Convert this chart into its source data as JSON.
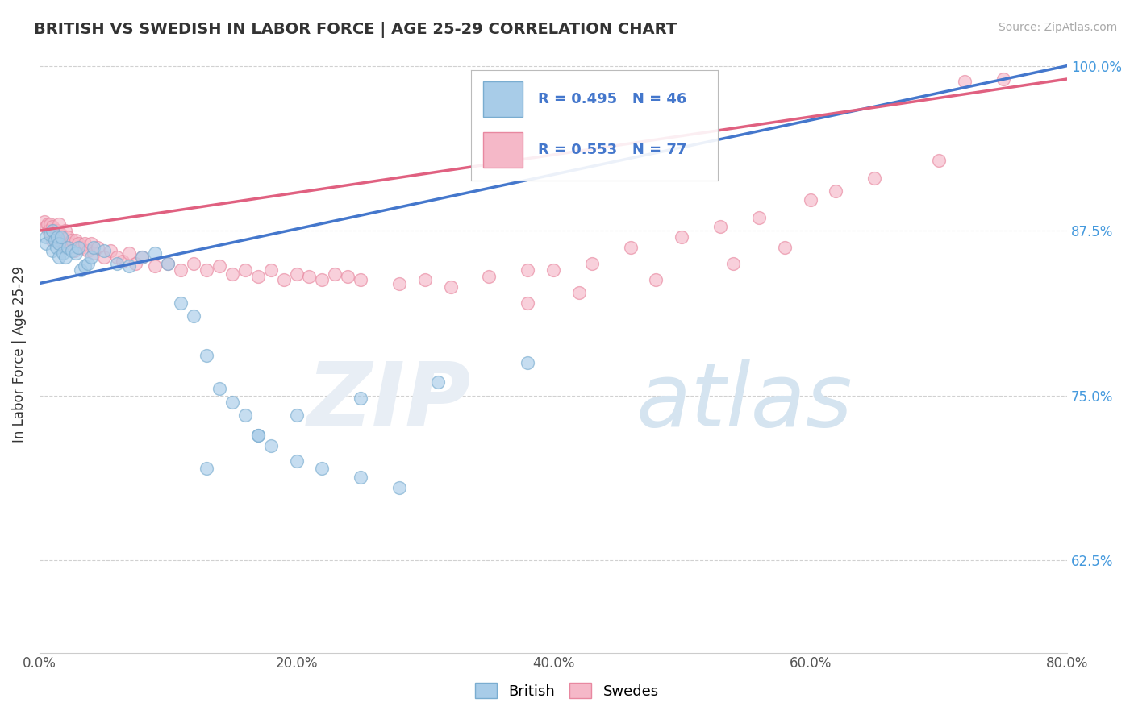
{
  "title": "BRITISH VS SWEDISH IN LABOR FORCE | AGE 25-29 CORRELATION CHART",
  "source_text": "Source: ZipAtlas.com",
  "ylabel": "In Labor Force | Age 25-29",
  "xlim": [
    0.0,
    0.8
  ],
  "ylim": [
    0.555,
    1.008
  ],
  "xtick_labels": [
    "0.0%",
    "20.0%",
    "40.0%",
    "60.0%",
    "80.0%"
  ],
  "xtick_values": [
    0.0,
    0.2,
    0.4,
    0.6,
    0.8
  ],
  "ytick_labels": [
    "62.5%",
    "75.0%",
    "87.5%",
    "100.0%"
  ],
  "ytick_values": [
    0.625,
    0.75,
    0.875,
    1.0
  ],
  "british_R": 0.495,
  "british_N": 46,
  "swedes_R": 0.553,
  "swedes_N": 77,
  "british_color": "#a8cce8",
  "swedes_color": "#f5b8c8",
  "british_edge": "#7aadd0",
  "swedes_edge": "#e888a0",
  "trend_blue": "#4477cc",
  "trend_pink": "#e06080",
  "legend_british": "British",
  "legend_swedes": "Swedes",
  "british_x": [
    0.005,
    0.005,
    0.008,
    0.01,
    0.01,
    0.012,
    0.013,
    0.014,
    0.015,
    0.015,
    0.017,
    0.018,
    0.02,
    0.022,
    0.025,
    0.028,
    0.03,
    0.032,
    0.035,
    0.038,
    0.04,
    0.042,
    0.05,
    0.06,
    0.07,
    0.08,
    0.09,
    0.1,
    0.11,
    0.12,
    0.13,
    0.14,
    0.15,
    0.16,
    0.17,
    0.18,
    0.2,
    0.22,
    0.25,
    0.28,
    0.13,
    0.17,
    0.2,
    0.25,
    0.31,
    0.38
  ],
  "british_y": [
    0.87,
    0.865,
    0.872,
    0.875,
    0.86,
    0.868,
    0.862,
    0.87,
    0.865,
    0.855,
    0.87,
    0.858,
    0.855,
    0.862,
    0.86,
    0.858,
    0.862,
    0.845,
    0.848,
    0.85,
    0.855,
    0.862,
    0.86,
    0.85,
    0.848,
    0.855,
    0.858,
    0.85,
    0.82,
    0.81,
    0.78,
    0.755,
    0.745,
    0.735,
    0.72,
    0.712,
    0.7,
    0.695,
    0.688,
    0.68,
    0.695,
    0.72,
    0.735,
    0.748,
    0.76,
    0.775
  ],
  "swedes_x": [
    0.004,
    0.005,
    0.006,
    0.007,
    0.008,
    0.009,
    0.01,
    0.01,
    0.011,
    0.012,
    0.013,
    0.014,
    0.015,
    0.015,
    0.016,
    0.017,
    0.018,
    0.02,
    0.02,
    0.022,
    0.023,
    0.025,
    0.027,
    0.028,
    0.03,
    0.032,
    0.035,
    0.038,
    0.04,
    0.042,
    0.045,
    0.05,
    0.055,
    0.06,
    0.065,
    0.07,
    0.075,
    0.08,
    0.09,
    0.1,
    0.11,
    0.12,
    0.13,
    0.14,
    0.15,
    0.16,
    0.17,
    0.18,
    0.19,
    0.2,
    0.21,
    0.22,
    0.23,
    0.24,
    0.25,
    0.28,
    0.3,
    0.32,
    0.35,
    0.38,
    0.4,
    0.43,
    0.46,
    0.5,
    0.53,
    0.56,
    0.6,
    0.62,
    0.65,
    0.7,
    0.72,
    0.75,
    0.38,
    0.42,
    0.48,
    0.54,
    0.58
  ],
  "swedes_y": [
    0.882,
    0.878,
    0.88,
    0.875,
    0.88,
    0.872,
    0.878,
    0.868,
    0.875,
    0.872,
    0.868,
    0.875,
    0.88,
    0.865,
    0.87,
    0.872,
    0.868,
    0.875,
    0.862,
    0.87,
    0.865,
    0.868,
    0.86,
    0.868,
    0.865,
    0.862,
    0.865,
    0.86,
    0.865,
    0.858,
    0.862,
    0.855,
    0.86,
    0.855,
    0.852,
    0.858,
    0.85,
    0.855,
    0.848,
    0.85,
    0.845,
    0.85,
    0.845,
    0.848,
    0.842,
    0.845,
    0.84,
    0.845,
    0.838,
    0.842,
    0.84,
    0.838,
    0.842,
    0.84,
    0.838,
    0.835,
    0.838,
    0.832,
    0.84,
    0.845,
    0.845,
    0.85,
    0.862,
    0.87,
    0.878,
    0.885,
    0.898,
    0.905,
    0.915,
    0.928,
    0.988,
    0.99,
    0.82,
    0.828,
    0.838,
    0.85,
    0.862
  ]
}
